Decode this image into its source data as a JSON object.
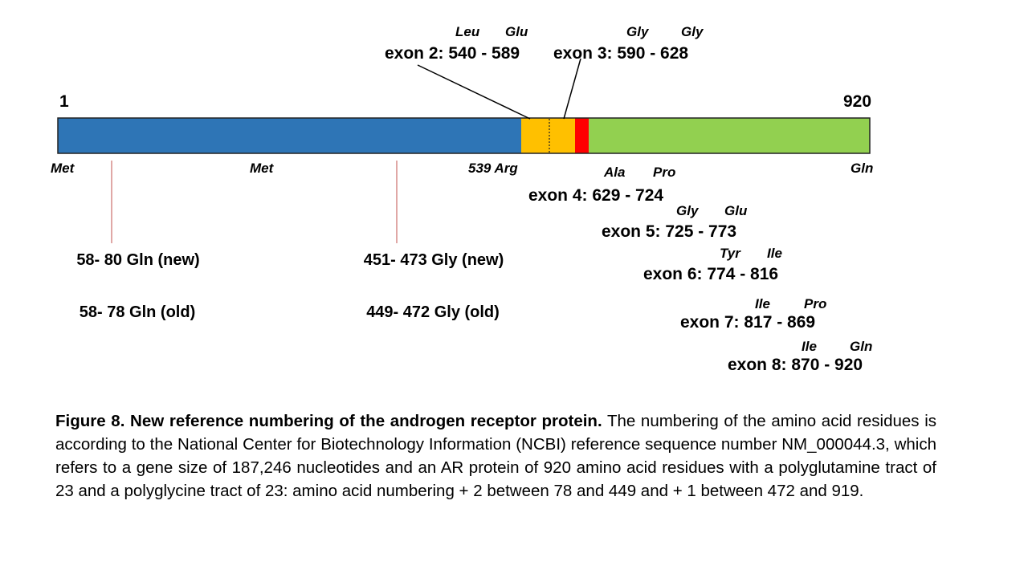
{
  "diagram": {
    "start_label": "1",
    "end_label": "920",
    "colors": {
      "blue": "#2e75b6",
      "orange": "#ffc000",
      "red": "#ff0000",
      "green": "#92d050",
      "pointer_red": "#c0504d",
      "outline": "#222222"
    },
    "domains": [
      {
        "name": "blue",
        "start": 1,
        "end": 539
      },
      {
        "name": "orange",
        "start": 540,
        "end": 628
      },
      {
        "name": "red",
        "start": 629,
        "end": 645
      },
      {
        "name": "green",
        "start": 646,
        "end": 920
      }
    ],
    "residues": {
      "met_1": "Met",
      "met_2": "Met",
      "arg": "539 Arg",
      "gln_end": "Gln"
    },
    "exons": [
      {
        "label": "exon 2: 540 - 589",
        "aa_left": "Leu",
        "aa_right": "Glu"
      },
      {
        "label": "exon 3: 590 - 628",
        "aa_left": "Gly",
        "aa_right": "Gly"
      },
      {
        "label": "exon 4: 629 - 724",
        "aa_left": "Ala",
        "aa_right": "Pro"
      },
      {
        "label": "exon 5: 725 - 773",
        "aa_left": "Gly",
        "aa_right": "Glu"
      },
      {
        "label": "exon 6: 774 - 816",
        "aa_left": "Tyr",
        "aa_right": "Ile"
      },
      {
        "label": "exon 7: 817 - 869",
        "aa_left": "Ile",
        "aa_right": "Pro"
      },
      {
        "label": "exon 8: 870 - 920",
        "aa_left": "Ile",
        "aa_right": "Gln"
      }
    ],
    "tracts": {
      "gln_new": "58- 80 Gln (new)",
      "gln_old": "58- 78 Gln (old)",
      "gly_new": "451- 473 Gly (new)",
      "gly_old": "449- 472 Gly (old)"
    }
  },
  "caption": {
    "title": "Figure 8. New reference numbering of the androgen receptor protein.",
    "body": "The numbering of the amino acid residues is according to the National Center for Biotechnology Information (NCBI) reference sequence number NM_000044.3, which refers to a gene size of 187,246 nucleotides and an AR protein of 920 amino acid residues with a polyglutamine tract of 23 and a polyglycine tract of 23: amino acid numbering + 2 between 78 and 449 and + 1 between 472 and 919."
  }
}
